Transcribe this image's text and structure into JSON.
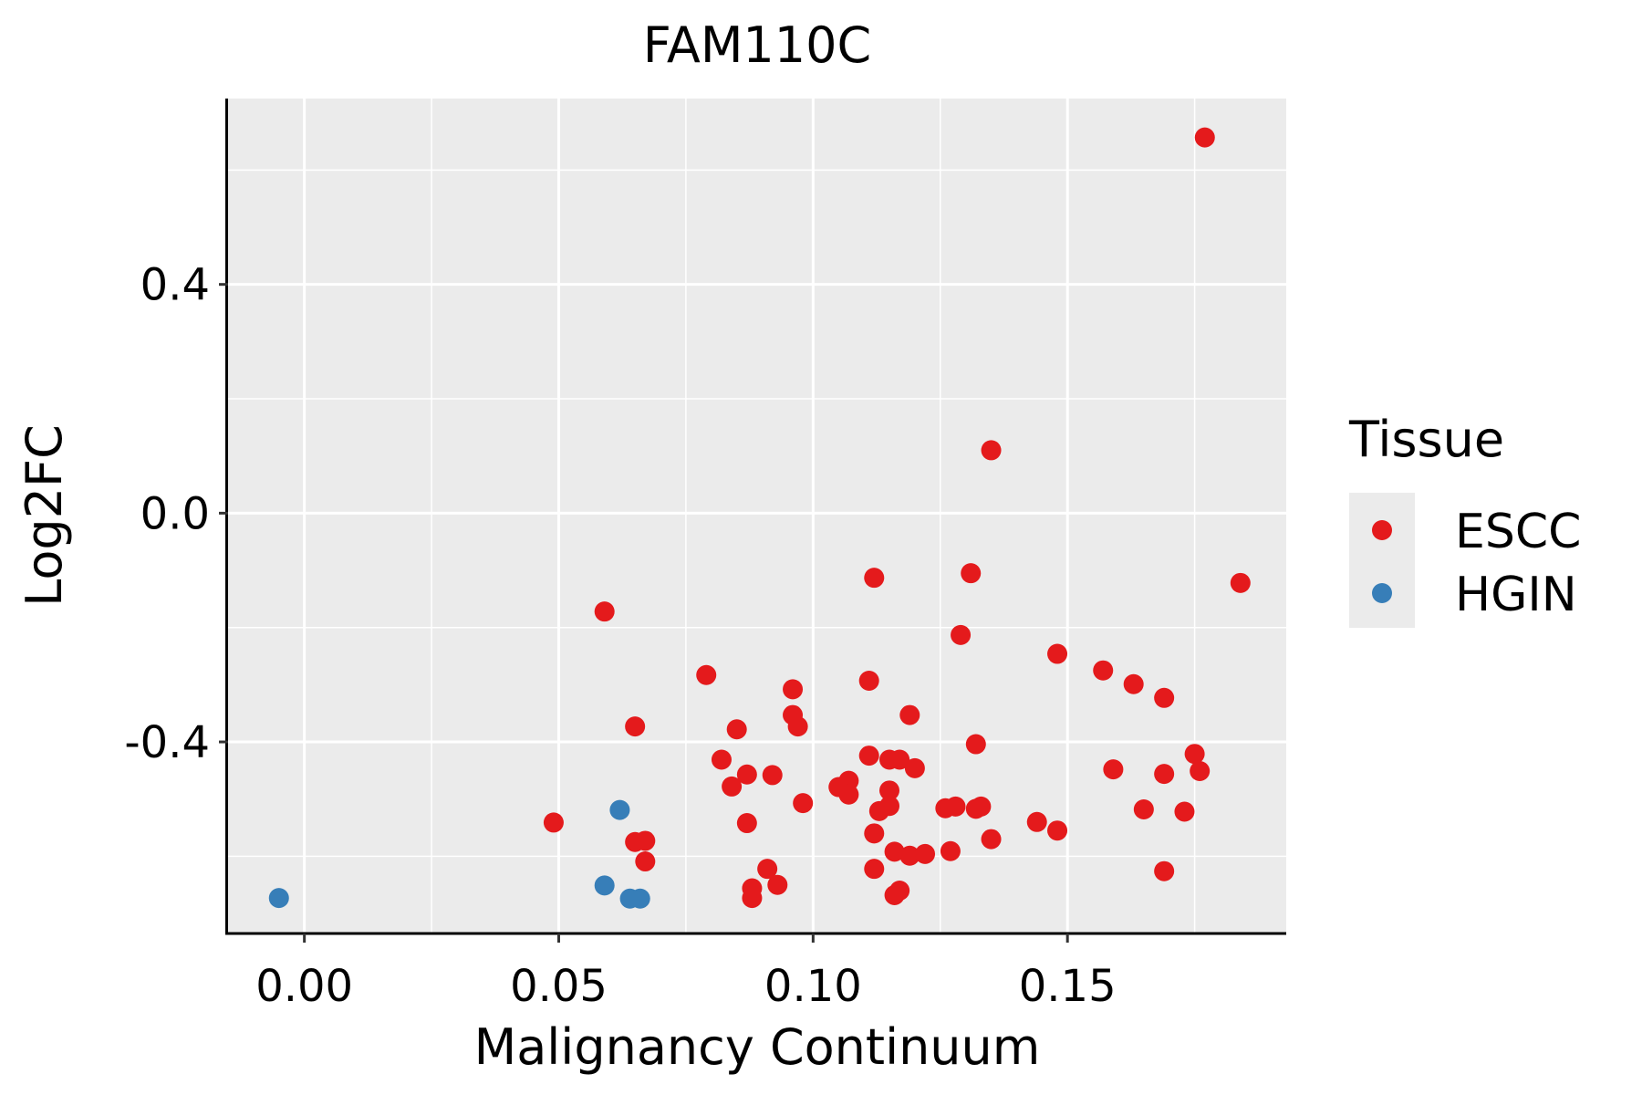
{
  "chart_data": {
    "type": "scatter",
    "title": "FAM110C",
    "xlabel": "Malignancy Continuum",
    "ylabel": "Log2FC",
    "xlim": [
      -0.015,
      0.193
    ],
    "ylim": [
      -0.735,
      0.725
    ],
    "x_ticks": [
      0.0,
      0.05,
      0.1,
      0.15
    ],
    "x_tick_labels": [
      "0.00",
      "0.05",
      "0.10",
      "0.15"
    ],
    "y_ticks": [
      0.4,
      0.0,
      -0.4
    ],
    "y_tick_labels": [
      "0.4",
      "0.0",
      "-0.4"
    ],
    "grid": true,
    "legend": {
      "title": "Tissue",
      "placement": "right"
    },
    "series": [
      {
        "name": "ESCC",
        "color": "#e41a1c",
        "points": [
          [
            0.177,
            0.657
          ],
          [
            0.135,
            0.11
          ],
          [
            0.184,
            -0.122
          ],
          [
            0.112,
            -0.113
          ],
          [
            0.131,
            -0.105
          ],
          [
            0.059,
            -0.172
          ],
          [
            0.129,
            -0.213
          ],
          [
            0.148,
            -0.246
          ],
          [
            0.157,
            -0.275
          ],
          [
            0.163,
            -0.299
          ],
          [
            0.169,
            -0.323
          ],
          [
            0.079,
            -0.283
          ],
          [
            0.111,
            -0.293
          ],
          [
            0.096,
            -0.308
          ],
          [
            0.096,
            -0.353
          ],
          [
            0.097,
            -0.373
          ],
          [
            0.065,
            -0.373
          ],
          [
            0.085,
            -0.378
          ],
          [
            0.119,
            -0.353
          ],
          [
            0.132,
            -0.404
          ],
          [
            0.175,
            -0.421
          ],
          [
            0.111,
            -0.424
          ],
          [
            0.115,
            -0.431
          ],
          [
            0.117,
            -0.431
          ],
          [
            0.082,
            -0.431
          ],
          [
            0.12,
            -0.446
          ],
          [
            0.159,
            -0.448
          ],
          [
            0.176,
            -0.451
          ],
          [
            0.169,
            -0.456
          ],
          [
            0.087,
            -0.457
          ],
          [
            0.092,
            -0.458
          ],
          [
            0.107,
            -0.468
          ],
          [
            0.105,
            -0.479
          ],
          [
            0.084,
            -0.478
          ],
          [
            0.107,
            -0.492
          ],
          [
            0.115,
            -0.485
          ],
          [
            0.098,
            -0.507
          ],
          [
            0.126,
            -0.516
          ],
          [
            0.128,
            -0.513
          ],
          [
            0.133,
            -0.513
          ],
          [
            0.132,
            -0.517
          ],
          [
            0.115,
            -0.512
          ],
          [
            0.113,
            -0.521
          ],
          [
            0.165,
            -0.518
          ],
          [
            0.173,
            -0.522
          ],
          [
            0.049,
            -0.541
          ],
          [
            0.087,
            -0.542
          ],
          [
            0.144,
            -0.54
          ],
          [
            0.148,
            -0.555
          ],
          [
            0.112,
            -0.56
          ],
          [
            0.065,
            -0.575
          ],
          [
            0.067,
            -0.573
          ],
          [
            0.135,
            -0.57
          ],
          [
            0.116,
            -0.592
          ],
          [
            0.119,
            -0.599
          ],
          [
            0.122,
            -0.596
          ],
          [
            0.127,
            -0.591
          ],
          [
            0.067,
            -0.609
          ],
          [
            0.091,
            -0.622
          ],
          [
            0.112,
            -0.622
          ],
          [
            0.169,
            -0.626
          ],
          [
            0.093,
            -0.65
          ],
          [
            0.088,
            -0.656
          ],
          [
            0.117,
            -0.66
          ],
          [
            0.116,
            -0.668
          ],
          [
            0.088,
            -0.673
          ]
        ]
      },
      {
        "name": "HGIN",
        "color": "#377eb8",
        "points": [
          [
            -0.005,
            -0.673
          ],
          [
            0.059,
            -0.651
          ],
          [
            0.062,
            -0.519
          ],
          [
            0.064,
            -0.674
          ],
          [
            0.066,
            -0.674
          ]
        ]
      }
    ]
  }
}
